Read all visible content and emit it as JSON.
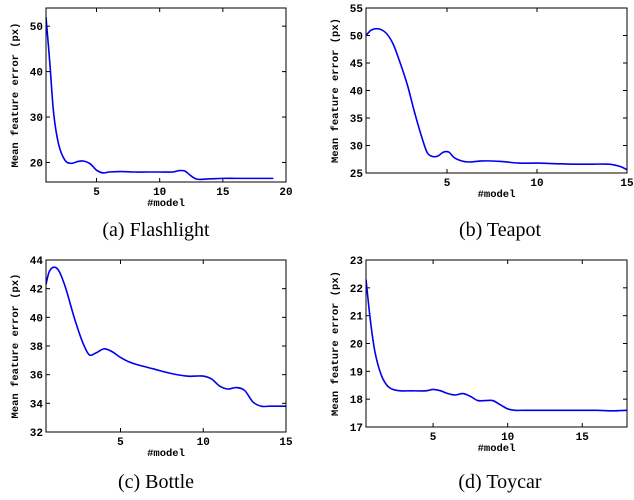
{
  "chart_data": [
    {
      "type": "line",
      "caption": "(a) Flashlight",
      "xlabel": "#model",
      "ylabel": "Mean feature error (px)",
      "xlim": [
        1,
        20
      ],
      "ylim": [
        15.7,
        54
      ],
      "xticks": [
        5,
        10,
        15,
        20
      ],
      "yticks": [
        20,
        30,
        40,
        50
      ],
      "series": [
        {
          "color": "#0000ee",
          "x": [
            1,
            1.3,
            1.6,
            2,
            2.5,
            3,
            3.5,
            4,
            4.5,
            5,
            5.5,
            6,
            7,
            8,
            9,
            10,
            11,
            11.5,
            12,
            12.5,
            13,
            14,
            15,
            16,
            17,
            18,
            19
          ],
          "y": [
            52,
            42,
            31,
            24,
            20.5,
            19.8,
            20.2,
            20.3,
            19.7,
            18.3,
            17.7,
            17.9,
            18.0,
            17.9,
            17.9,
            17.9,
            17.9,
            18.2,
            18.1,
            17.0,
            16.3,
            16.4,
            16.5,
            16.5,
            16.5,
            16.5,
            16.5
          ]
        }
      ]
    },
    {
      "type": "line",
      "caption": "(b) Teapot",
      "xlabel": "#model",
      "ylabel": "Mean feature error (px)",
      "xlim": [
        0.5,
        15
      ],
      "ylim": [
        25,
        55
      ],
      "xticks": [
        5,
        10,
        15
      ],
      "yticks": [
        25,
        30,
        35,
        40,
        45,
        50,
        55
      ],
      "series": [
        {
          "color": "#0000ee",
          "x": [
            0.5,
            0.8,
            1.2,
            1.6,
            2,
            2.4,
            2.8,
            3.2,
            3.6,
            3.9,
            4.2,
            4.5,
            4.8,
            5.1,
            5.4,
            5.8,
            6.2,
            7,
            8,
            9,
            10,
            11,
            12,
            13,
            14,
            14.6,
            15
          ],
          "y": [
            50,
            51,
            51.2,
            50.5,
            48.5,
            45,
            41,
            36,
            31.5,
            28.7,
            28,
            28.1,
            28.8,
            28.8,
            27.8,
            27.2,
            27,
            27.2,
            27.1,
            26.8,
            26.8,
            26.7,
            26.6,
            26.6,
            26.6,
            26.2,
            25.6
          ]
        }
      ]
    },
    {
      "type": "line",
      "caption": "(c) Bottle",
      "xlabel": "#model",
      "ylabel": "Mean feature error (px)",
      "xlim": [
        0.5,
        15
      ],
      "ylim": [
        32,
        44
      ],
      "xticks": [
        5,
        10,
        15
      ],
      "yticks": [
        32,
        34,
        36,
        38,
        40,
        42,
        44
      ],
      "series": [
        {
          "color": "#0000ee",
          "x": [
            0.5,
            0.7,
            1,
            1.3,
            1.7,
            2.2,
            2.7,
            3.1,
            3.5,
            4,
            4.5,
            5,
            5.5,
            6,
            7,
            8,
            9,
            9.5,
            10,
            10.5,
            11,
            11.5,
            12,
            12.5,
            13,
            13.5,
            14,
            14.5,
            15
          ],
          "y": [
            42.3,
            43.2,
            43.5,
            43.2,
            42,
            40,
            38.3,
            37.4,
            37.5,
            37.8,
            37.6,
            37.2,
            36.9,
            36.7,
            36.4,
            36.1,
            35.9,
            35.9,
            35.9,
            35.7,
            35.2,
            35.0,
            35.1,
            34.9,
            34.1,
            33.8,
            33.8,
            33.8,
            33.8
          ]
        }
      ]
    },
    {
      "type": "line",
      "caption": "(d) Toycar",
      "xlabel": "#model",
      "ylabel": "Mean feature error (px)",
      "xlim": [
        0.5,
        18
      ],
      "ylim": [
        17,
        23
      ],
      "xticks": [
        5,
        10,
        15
      ],
      "yticks": [
        17,
        18,
        19,
        20,
        21,
        22,
        23
      ],
      "series": [
        {
          "color": "#0000ee",
          "x": [
            0.5,
            0.8,
            1.1,
            1.5,
            1.9,
            2.3,
            2.8,
            3.5,
            4.5,
            5,
            5.5,
            6,
            6.5,
            7,
            7.5,
            8,
            8.5,
            9,
            9.5,
            10,
            10.5,
            11,
            12,
            13,
            14,
            15,
            16,
            17,
            18
          ],
          "y": [
            22.3,
            20.8,
            19.7,
            18.9,
            18.5,
            18.35,
            18.3,
            18.3,
            18.3,
            18.35,
            18.3,
            18.2,
            18.15,
            18.2,
            18.1,
            17.95,
            17.95,
            17.95,
            17.8,
            17.65,
            17.6,
            17.6,
            17.6,
            17.6,
            17.6,
            17.6,
            17.6,
            17.58,
            17.6
          ]
        }
      ]
    }
  ]
}
